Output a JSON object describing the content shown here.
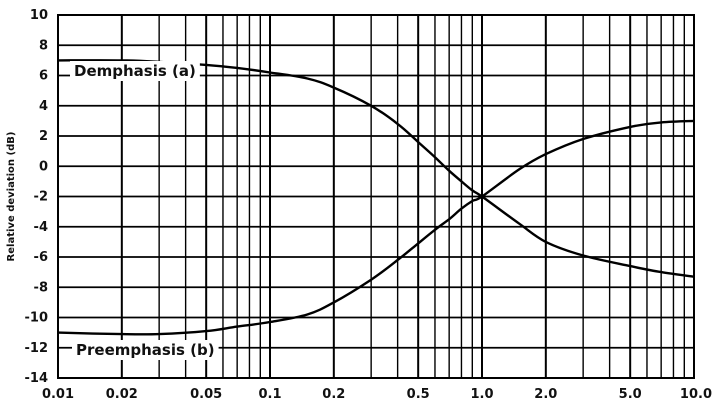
{
  "chart_data": {
    "type": "line",
    "title": "",
    "xlabel": "",
    "ylabel": "Relative deviation (dB)",
    "xscale": "log",
    "xlim": [
      0.01,
      10.0
    ],
    "ylim": [
      -14,
      10
    ],
    "grid": true,
    "x_ticks": [
      0.01,
      0.02,
      0.05,
      0.1,
      0.2,
      0.5,
      1.0,
      2.0,
      5.0,
      10.0
    ],
    "x_tick_labels": [
      "0.01",
      "0.02",
      "0.05",
      "0.1",
      "0.2",
      "0.5",
      "1.0",
      "2.0",
      "5.0",
      "10.0"
    ],
    "y_ticks": [
      10,
      8,
      6,
      4,
      2,
      0,
      -2,
      -4,
      -6,
      -8,
      -10,
      -12,
      -14
    ],
    "y_tick_labels": [
      "10",
      "8",
      "6",
      "4",
      "2",
      "0",
      "-2",
      "-4",
      "-6",
      "-8",
      "-10",
      "-12",
      "-14"
    ],
    "series": [
      {
        "name": "Demphasis (a)",
        "x": [
          0.01,
          0.02,
          0.03,
          0.05,
          0.07,
          0.1,
          0.15,
          0.2,
          0.3,
          0.4,
          0.5,
          0.6,
          0.7,
          0.8,
          0.9,
          1.0,
          1.5,
          2.0,
          3.0,
          5.0,
          7.0,
          10.0
        ],
        "values": [
          7.0,
          7.0,
          6.9,
          6.7,
          6.5,
          6.2,
          5.8,
          5.2,
          4.0,
          2.8,
          1.6,
          0.6,
          -0.3,
          -1.0,
          -1.6,
          -2.0,
          -3.8,
          -5.0,
          -5.9,
          -6.6,
          -7.0,
          -7.3
        ]
      },
      {
        "name": "Preemphasis (b)",
        "x": [
          0.01,
          0.02,
          0.03,
          0.05,
          0.07,
          0.1,
          0.15,
          0.2,
          0.3,
          0.4,
          0.5,
          0.6,
          0.7,
          0.8,
          0.9,
          1.0,
          1.5,
          2.0,
          3.0,
          5.0,
          7.0,
          10.0
        ],
        "values": [
          -11.0,
          -11.1,
          -11.1,
          -10.9,
          -10.6,
          -10.3,
          -9.8,
          -9.0,
          -7.5,
          -6.2,
          -5.1,
          -4.2,
          -3.5,
          -2.8,
          -2.3,
          -2.0,
          -0.2,
          0.8,
          1.8,
          2.6,
          2.9,
          3.0
        ]
      }
    ],
    "annotations": [
      {
        "text": "Demphasis (a)",
        "series": 0
      },
      {
        "text": "Preemphasis (b)",
        "series": 1
      }
    ]
  }
}
